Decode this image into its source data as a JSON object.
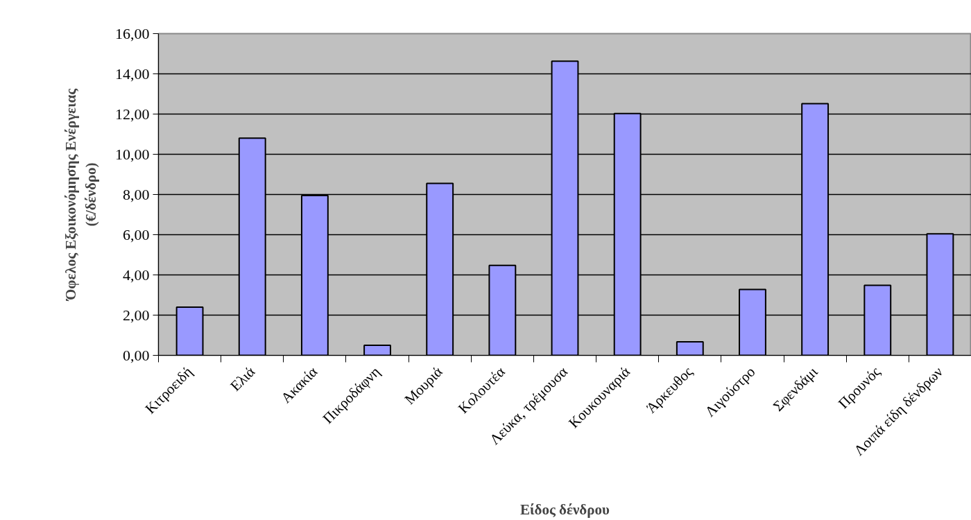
{
  "chart_data": {
    "type": "bar",
    "xlabel": "Είδος δένδρου",
    "ylabel": "Όφελος Εξοικονόμησης Ενέργειας\n(€/δένδρο)",
    "categories": [
      "Κιτροειδή",
      "Ελιά",
      "Ακακία",
      "Πικροδάφνη",
      "Μουριά",
      "Κολουτέα",
      "Λεύκα, τρέμουσα",
      "Κουκουναριά",
      "Άρκευθος",
      "Λιγούστρο",
      "Σφενδάμι",
      "Προυνός",
      "Λοιπά είδη δένδρων"
    ],
    "values": [
      2.4,
      10.8,
      7.95,
      0.5,
      8.55,
      4.47,
      14.63,
      12.03,
      0.67,
      3.28,
      12.52,
      3.48,
      6.04
    ],
    "color": "#9999ff",
    "ylim": [
      0,
      16
    ],
    "yticks": [
      {
        "value": 0,
        "label": "0,00"
      },
      {
        "value": 2,
        "label": "2,00"
      },
      {
        "value": 4,
        "label": "4,00"
      },
      {
        "value": 6,
        "label": "6,00"
      },
      {
        "value": 8,
        "label": "8,00"
      },
      {
        "value": 10,
        "label": "10,00"
      },
      {
        "value": 12,
        "label": "12,00"
      },
      {
        "value": 14,
        "label": "14,00"
      },
      {
        "value": 16,
        "label": "16,00"
      }
    ],
    "grid": "y"
  }
}
